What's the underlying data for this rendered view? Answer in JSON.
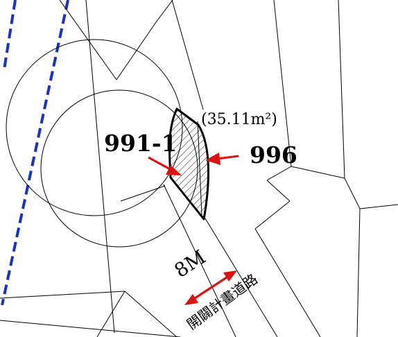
{
  "parcels": {
    "left_label": "991-1",
    "right_label": "996"
  },
  "area": {
    "label": "(35.11m²)"
  },
  "road": {
    "width_label": "8M",
    "name_label": "開闢計畫道路"
  },
  "colors": {
    "background": "#ffffff",
    "line": "#000000",
    "arrow": "#e01010",
    "dashed_boundary": "#1a2fd0"
  }
}
